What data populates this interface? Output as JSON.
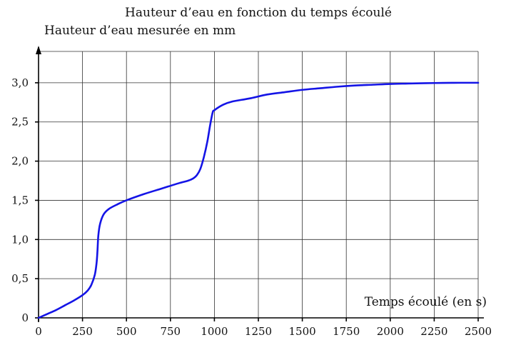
{
  "chart_data": {
    "type": "line",
    "title": "Hauteur d’eau en fonction du temps écoulé",
    "ylabel": "Hauteur d’eau mesurée en mm",
    "xlabel": "Temps écoulé (en s)",
    "xlim": [
      0,
      2500
    ],
    "ylim": [
      0,
      3.4
    ],
    "x_ticks": [
      0,
      250,
      500,
      750,
      1000,
      1250,
      1500,
      1750,
      2000,
      2250,
      2500
    ],
    "x_tick_labels": [
      "0",
      "250",
      "500",
      "750",
      "1000",
      "1250",
      "1500",
      "1750",
      "2000",
      "2250",
      "2500"
    ],
    "y_ticks": [
      0,
      0.5,
      1.0,
      1.5,
      2.0,
      2.5,
      3.0
    ],
    "y_tick_labels": [
      "0",
      "0,5",
      "1,0",
      "1,5",
      "2,0",
      "2,5",
      "3,0"
    ],
    "grid": true,
    "series": [
      {
        "color": "#1414e6",
        "x": [
          0,
          50,
          100,
          150,
          200,
          250,
          280,
          300,
          320,
          330,
          335,
          340,
          350,
          370,
          400,
          450,
          500,
          600,
          700,
          800,
          850,
          880,
          900,
          920,
          940,
          960,
          975,
          990,
          1000,
          1050,
          1100,
          1200,
          1300,
          1400,
          1500,
          1600,
          1700,
          1800,
          1900,
          2000,
          2100,
          2200,
          2300,
          2400,
          2500
        ],
        "y": [
          0,
          0.05,
          0.1,
          0.16,
          0.22,
          0.29,
          0.35,
          0.42,
          0.55,
          0.7,
          0.85,
          1.05,
          1.2,
          1.32,
          1.39,
          1.45,
          1.5,
          1.58,
          1.65,
          1.72,
          1.75,
          1.78,
          1.82,
          1.9,
          2.05,
          2.25,
          2.45,
          2.62,
          2.65,
          2.72,
          2.76,
          2.8,
          2.85,
          2.88,
          2.91,
          2.93,
          2.95,
          2.965,
          2.975,
          2.985,
          2.99,
          2.995,
          2.998,
          3.0,
          3.0
        ]
      }
    ]
  }
}
